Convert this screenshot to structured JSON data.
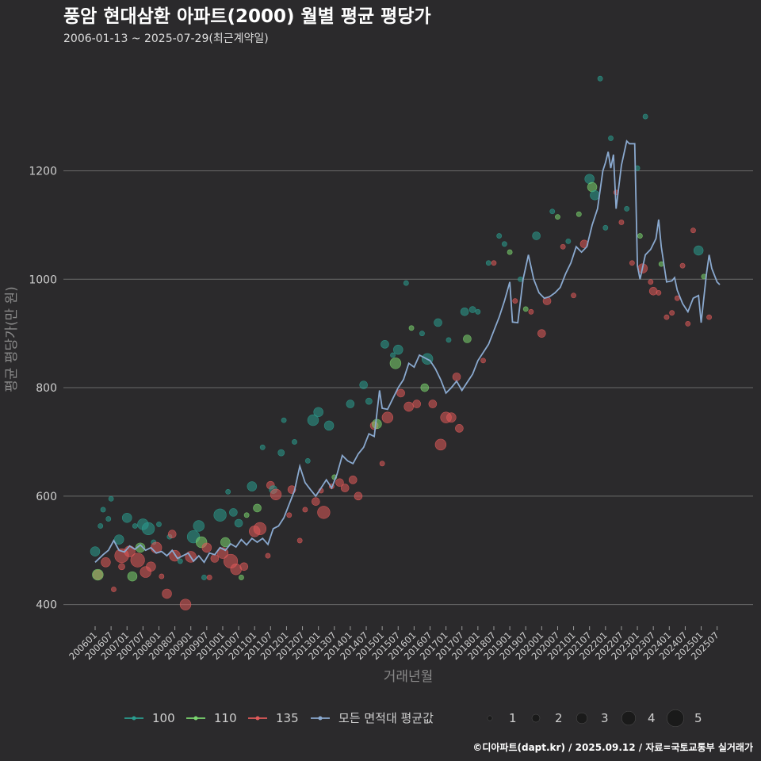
{
  "header": {
    "title": "풍암 현대삼환 아파트(2000) 월별 평균 평당가",
    "subtitle": "2006-01-13 ~ 2025-07-29(최근계약일)"
  },
  "footer": {
    "credit": "©디아파트(dapt.kr) / 2025.09.12 / 자료=국토교통부 실거래가"
  },
  "colors": {
    "background": "#2b2a2c",
    "grid": "#6a6a6a",
    "area_100": "#2a9d8f",
    "area_110": "#7bd66f",
    "area_135": "#e05a5a",
    "average_line": "#8aa9cf"
  },
  "chart_data": {
    "type": "scatter",
    "xlabel": "거래년월",
    "ylabel": "평균 평당가(만 원)",
    "ylim": [
      360,
      1420
    ],
    "yticks": [
      400,
      600,
      800,
      1000,
      1200
    ],
    "x_range": [
      "2006-01",
      "2025-08"
    ],
    "xtick_labels": [
      "200601",
      "200607",
      "200701",
      "200707",
      "200801",
      "200807",
      "200901",
      "200907",
      "201001",
      "201007",
      "201101",
      "201107",
      "201201",
      "201207",
      "201301",
      "201307",
      "201401",
      "201407",
      "201501",
      "201507",
      "201601",
      "201607",
      "201701",
      "201707",
      "201801",
      "201807",
      "201901",
      "201907",
      "202001",
      "202007",
      "202101",
      "202107",
      "202201",
      "202207",
      "202301",
      "202307",
      "202401",
      "202407",
      "202501",
      "202507"
    ],
    "grid": "horizontal",
    "legend_placement": "bottom",
    "color_legend": [
      {
        "name": "100",
        "key": "area_100"
      },
      {
        "name": "110",
        "key": "area_110"
      },
      {
        "name": "135",
        "key": "area_135"
      },
      {
        "name": "모든 면적대 평균값",
        "key": "average_line"
      }
    ],
    "size_legend": [
      1,
      2,
      3,
      4,
      5
    ],
    "average_line": [
      [
        "2006-01",
        478
      ],
      [
        "2006-04",
        492
      ],
      [
        "2006-06",
        500
      ],
      [
        "2006-08",
        518
      ],
      [
        "2006-10",
        500
      ],
      [
        "2006-12",
        497
      ],
      [
        "2007-02",
        508
      ],
      [
        "2007-04",
        502
      ],
      [
        "2007-06",
        510
      ],
      [
        "2007-08",
        500
      ],
      [
        "2007-10",
        505
      ],
      [
        "2007-12",
        495
      ],
      [
        "2008-02",
        498
      ],
      [
        "2008-04",
        490
      ],
      [
        "2008-06",
        500
      ],
      [
        "2008-08",
        485
      ],
      [
        "2008-10",
        490
      ],
      [
        "2008-12",
        495
      ],
      [
        "2009-02",
        480
      ],
      [
        "2009-04",
        490
      ],
      [
        "2009-06",
        478
      ],
      [
        "2009-08",
        495
      ],
      [
        "2009-10",
        492
      ],
      [
        "2009-12",
        505
      ],
      [
        "2010-02",
        500
      ],
      [
        "2010-04",
        512
      ],
      [
        "2010-06",
        506
      ],
      [
        "2010-08",
        520
      ],
      [
        "2010-10",
        510
      ],
      [
        "2010-12",
        522
      ],
      [
        "2011-02",
        515
      ],
      [
        "2011-04",
        522
      ],
      [
        "2011-06",
        511
      ],
      [
        "2011-08",
        540
      ],
      [
        "2011-10",
        545
      ],
      [
        "2011-12",
        560
      ],
      [
        "2012-02",
        585
      ],
      [
        "2012-04",
        610
      ],
      [
        "2012-06",
        655
      ],
      [
        "2012-08",
        625
      ],
      [
        "2012-10",
        612
      ],
      [
        "2012-12",
        600
      ],
      [
        "2013-02",
        615
      ],
      [
        "2013-04",
        630
      ],
      [
        "2013-06",
        615
      ],
      [
        "2013-08",
        640
      ],
      [
        "2013-10",
        675
      ],
      [
        "2013-12",
        665
      ],
      [
        "2014-02",
        660
      ],
      [
        "2014-04",
        678
      ],
      [
        "2014-06",
        690
      ],
      [
        "2014-08",
        715
      ],
      [
        "2014-10",
        710
      ],
      [
        "2014-12",
        795
      ],
      [
        "2015-01",
        762
      ],
      [
        "2015-03",
        760
      ],
      [
        "2015-05",
        780
      ],
      [
        "2015-07",
        800
      ],
      [
        "2015-09",
        815
      ],
      [
        "2015-11",
        845
      ],
      [
        "2016-01",
        838
      ],
      [
        "2016-03",
        860
      ],
      [
        "2016-05",
        855
      ],
      [
        "2016-07",
        850
      ],
      [
        "2016-09",
        835
      ],
      [
        "2016-11",
        815
      ],
      [
        "2017-01",
        790
      ],
      [
        "2017-03",
        800
      ],
      [
        "2017-05",
        812
      ],
      [
        "2017-07",
        795
      ],
      [
        "2017-09",
        810
      ],
      [
        "2017-11",
        825
      ],
      [
        "2018-01",
        850
      ],
      [
        "2018-03",
        865
      ],
      [
        "2018-05",
        880
      ],
      [
        "2018-07",
        905
      ],
      [
        "2018-09",
        930
      ],
      [
        "2018-11",
        960
      ],
      [
        "2019-01",
        995
      ],
      [
        "2019-02",
        921
      ],
      [
        "2019-04",
        920
      ],
      [
        "2019-06",
        1000
      ],
      [
        "2019-08",
        1045
      ],
      [
        "2019-10",
        1000
      ],
      [
        "2019-12",
        975
      ],
      [
        "2020-02",
        965
      ],
      [
        "2020-04",
        968
      ],
      [
        "2020-06",
        975
      ],
      [
        "2020-08",
        985
      ],
      [
        "2020-10",
        1010
      ],
      [
        "2020-12",
        1030
      ],
      [
        "2021-02",
        1060
      ],
      [
        "2021-04",
        1050
      ],
      [
        "2021-06",
        1060
      ],
      [
        "2021-08",
        1100
      ],
      [
        "2021-10",
        1130
      ],
      [
        "2021-12",
        1200
      ],
      [
        "2022-01",
        1215
      ],
      [
        "2022-02",
        1235
      ],
      [
        "2022-03",
        1205
      ],
      [
        "2022-04",
        1230
      ],
      [
        "2022-05",
        1130
      ],
      [
        "2022-07",
        1210
      ],
      [
        "2022-09",
        1255
      ],
      [
        "2022-10",
        1250
      ],
      [
        "2022-12",
        1250
      ],
      [
        "2023-01",
        1025
      ],
      [
        "2023-02",
        1000
      ],
      [
        "2023-04",
        1045
      ],
      [
        "2023-06",
        1055
      ],
      [
        "2023-08",
        1075
      ],
      [
        "2023-09",
        1110
      ],
      [
        "2023-10",
        1060
      ],
      [
        "2023-12",
        995
      ],
      [
        "2024-02",
        997
      ],
      [
        "2024-03",
        1003
      ],
      [
        "2024-04",
        980
      ],
      [
        "2024-06",
        955
      ],
      [
        "2024-08",
        940
      ],
      [
        "2024-10",
        965
      ],
      [
        "2024-12",
        970
      ],
      [
        "2025-01",
        920
      ],
      [
        "2025-03",
        1010
      ],
      [
        "2025-04",
        1045
      ],
      [
        "2025-05",
        1020
      ],
      [
        "2025-07",
        995
      ],
      [
        "2025-08",
        990
      ]
    ],
    "points": [
      [
        "2006-01",
        "100",
        498,
        2.5
      ],
      [
        "2006-02",
        "135",
        455,
        2.5
      ],
      [
        "2006-02",
        "110",
        455,
        3
      ],
      [
        "2006-03",
        "100",
        545,
        1
      ],
      [
        "2006-04",
        "100",
        575,
        1
      ],
      [
        "2006-05",
        "135",
        478,
        2.5
      ],
      [
        "2006-06",
        "100",
        558,
        1
      ],
      [
        "2006-07",
        "100",
        595,
        1
      ],
      [
        "2006-08",
        "135",
        428,
        1
      ],
      [
        "2006-10",
        "100",
        520,
        2.5
      ],
      [
        "2006-11",
        "135",
        470,
        1.5
      ],
      [
        "2006-11",
        "135",
        490,
        4
      ],
      [
        "2007-01",
        "100",
        560,
        2.5
      ],
      [
        "2007-02",
        "135",
        498,
        3
      ],
      [
        "2007-03",
        "110",
        452,
        2.5
      ],
      [
        "2007-04",
        "100",
        545,
        1
      ],
      [
        "2007-05",
        "135",
        482,
        4
      ],
      [
        "2007-06",
        "110",
        505,
        2.5
      ],
      [
        "2007-07",
        "100",
        548,
        3
      ],
      [
        "2007-08",
        "135",
        460,
        3
      ],
      [
        "2007-09",
        "100",
        540,
        3.5
      ],
      [
        "2007-10",
        "135",
        470,
        2.5
      ],
      [
        "2007-11",
        "100",
        515,
        1
      ],
      [
        "2007-12",
        "135",
        505,
        3
      ],
      [
        "2008-01",
        "100",
        548,
        1
      ],
      [
        "2008-02",
        "135",
        452,
        1
      ],
      [
        "2008-04",
        "135",
        420,
        2.5
      ],
      [
        "2008-05",
        "100",
        525,
        1
      ],
      [
        "2008-06",
        "135",
        530,
        2
      ],
      [
        "2008-07",
        "135",
        490,
        3
      ],
      [
        "2008-09",
        "100",
        480,
        1
      ],
      [
        "2008-11",
        "135",
        400,
        3
      ],
      [
        "2009-01",
        "135",
        488,
        3
      ],
      [
        "2009-02",
        "100",
        525,
        3.5
      ],
      [
        "2009-04",
        "100",
        545,
        3
      ],
      [
        "2009-05",
        "110",
        515,
        3
      ],
      [
        "2009-06",
        "100",
        450,
        1
      ],
      [
        "2009-07",
        "135",
        505,
        2.5
      ],
      [
        "2009-08",
        "135",
        450,
        1
      ],
      [
        "2009-10",
        "135",
        485,
        2
      ],
      [
        "2009-12",
        "100",
        565,
        3.5
      ],
      [
        "2010-01",
        "135",
        495,
        3
      ],
      [
        "2010-02",
        "110",
        515,
        2.5
      ],
      [
        "2010-03",
        "100",
        608,
        1
      ],
      [
        "2010-04",
        "135",
        480,
        4
      ],
      [
        "2010-05",
        "100",
        570,
        2
      ],
      [
        "2010-06",
        "135",
        465,
        3
      ],
      [
        "2010-07",
        "100",
        550,
        2
      ],
      [
        "2010-08",
        "110",
        450,
        1
      ],
      [
        "2010-09",
        "135",
        470,
        2
      ],
      [
        "2010-10",
        "110",
        565,
        1
      ],
      [
        "2010-12",
        "100",
        618,
        2.5
      ],
      [
        "2011-01",
        "135",
        535,
        3
      ],
      [
        "2011-02",
        "110",
        578,
        2
      ],
      [
        "2011-03",
        "135",
        540,
        3.5
      ],
      [
        "2011-04",
        "100",
        690,
        1
      ],
      [
        "2011-06",
        "135",
        490,
        1
      ],
      [
        "2011-07",
        "135",
        620,
        2
      ],
      [
        "2011-08",
        "100",
        612,
        2
      ],
      [
        "2011-09",
        "135",
        603,
        3
      ],
      [
        "2011-11",
        "100",
        680,
        1.5
      ],
      [
        "2011-12",
        "100",
        740,
        1
      ],
      [
        "2012-02",
        "135",
        565,
        1
      ],
      [
        "2012-03",
        "135",
        612,
        2
      ],
      [
        "2012-04",
        "100",
        700,
        1
      ],
      [
        "2012-06",
        "135",
        518,
        1
      ],
      [
        "2012-08",
        "135",
        575,
        1
      ],
      [
        "2012-09",
        "100",
        665,
        1
      ],
      [
        "2012-11",
        "100",
        740,
        3
      ],
      [
        "2012-12",
        "135",
        590,
        2
      ],
      [
        "2013-01",
        "100",
        755,
        2.5
      ],
      [
        "2013-02",
        "135",
        610,
        1
      ],
      [
        "2013-03",
        "135",
        570,
        3.5
      ],
      [
        "2013-05",
        "100",
        730,
        2.5
      ],
      [
        "2013-06",
        "135",
        618,
        1
      ],
      [
        "2013-07",
        "110",
        635,
        1
      ],
      [
        "2013-09",
        "135",
        625,
        2
      ],
      [
        "2013-11",
        "135",
        615,
        2
      ],
      [
        "2014-01",
        "100",
        770,
        2
      ],
      [
        "2014-02",
        "135",
        630,
        2
      ],
      [
        "2014-04",
        "135",
        600,
        2
      ],
      [
        "2014-06",
        "100",
        805,
        2
      ],
      [
        "2014-08",
        "100",
        775,
        1.5
      ],
      [
        "2014-10",
        "135",
        730,
        2
      ],
      [
        "2014-11",
        "110",
        733,
        2.5
      ],
      [
        "2015-01",
        "135",
        660,
        1
      ],
      [
        "2015-02",
        "100",
        880,
        2
      ],
      [
        "2015-03",
        "135",
        745,
        3
      ],
      [
        "2015-05",
        "100",
        860,
        1
      ],
      [
        "2015-06",
        "110",
        845,
        3
      ],
      [
        "2015-07",
        "100",
        870,
        2.5
      ],
      [
        "2015-08",
        "135",
        790,
        2
      ],
      [
        "2015-10",
        "100",
        993,
        1
      ],
      [
        "2015-11",
        "135",
        765,
        2.5
      ],
      [
        "2015-12",
        "110",
        910,
        1
      ],
      [
        "2016-02",
        "135",
        770,
        2
      ],
      [
        "2016-04",
        "100",
        900,
        1
      ],
      [
        "2016-05",
        "110",
        800,
        2
      ],
      [
        "2016-06",
        "100",
        853,
        3
      ],
      [
        "2016-08",
        "135",
        770,
        2
      ],
      [
        "2016-10",
        "100",
        920,
        2
      ],
      [
        "2016-11",
        "135",
        695,
        3
      ],
      [
        "2017-01",
        "135",
        745,
        3
      ],
      [
        "2017-02",
        "100",
        888,
        1
      ],
      [
        "2017-03",
        "135",
        745,
        2.5
      ],
      [
        "2017-05",
        "135",
        820,
        2
      ],
      [
        "2017-06",
        "135",
        725,
        2
      ],
      [
        "2017-08",
        "100",
        940,
        2
      ],
      [
        "2017-09",
        "110",
        890,
        2
      ],
      [
        "2017-11",
        "100",
        944,
        1.5
      ],
      [
        "2018-01",
        "100",
        940,
        1
      ],
      [
        "2018-03",
        "135",
        850,
        1
      ],
      [
        "2018-05",
        "100",
        1030,
        1
      ],
      [
        "2018-07",
        "135",
        1030,
        1
      ],
      [
        "2018-09",
        "100",
        1080,
        1
      ],
      [
        "2018-11",
        "100",
        1065,
        1
      ],
      [
        "2019-01",
        "110",
        1050,
        1
      ],
      [
        "2019-03",
        "135",
        960,
        1
      ],
      [
        "2019-05",
        "100",
        1000,
        1
      ],
      [
        "2019-07",
        "110",
        945,
        1
      ],
      [
        "2019-09",
        "135",
        940,
        1
      ],
      [
        "2019-11",
        "100",
        1080,
        2
      ],
      [
        "2020-01",
        "135",
        900,
        2
      ],
      [
        "2020-03",
        "135",
        960,
        2
      ],
      [
        "2020-05",
        "100",
        1125,
        1
      ],
      [
        "2020-07",
        "110",
        1115,
        1
      ],
      [
        "2020-09",
        "135",
        1060,
        1
      ],
      [
        "2020-11",
        "100",
        1070,
        1
      ],
      [
        "2021-01",
        "135",
        970,
        1
      ],
      [
        "2021-03",
        "110",
        1120,
        1
      ],
      [
        "2021-05",
        "135",
        1065,
        2
      ],
      [
        "2021-07",
        "100",
        1185,
        2.5
      ],
      [
        "2021-08",
        "110",
        1170,
        2.5
      ],
      [
        "2021-09",
        "100",
        1155,
        2.5
      ],
      [
        "2021-11",
        "100",
        1370,
        1
      ],
      [
        "2022-01",
        "100",
        1095,
        1
      ],
      [
        "2022-03",
        "100",
        1260,
        1
      ],
      [
        "2022-05",
        "135",
        1160,
        1
      ],
      [
        "2022-07",
        "135",
        1105,
        1
      ],
      [
        "2022-09",
        "100",
        1130,
        1
      ],
      [
        "2022-11",
        "135",
        1030,
        1
      ],
      [
        "2023-01",
        "100",
        1205,
        1
      ],
      [
        "2023-02",
        "110",
        1080,
        1
      ],
      [
        "2023-03",
        "135",
        1020,
        2.5
      ],
      [
        "2023-04",
        "100",
        1300,
        1
      ],
      [
        "2023-06",
        "135",
        995,
        1
      ],
      [
        "2023-07",
        "135",
        978,
        2
      ],
      [
        "2023-09",
        "135",
        975,
        1
      ],
      [
        "2023-10",
        "110",
        1028,
        1
      ],
      [
        "2023-12",
        "135",
        930,
        1
      ],
      [
        "2024-02",
        "135",
        938,
        1
      ],
      [
        "2024-04",
        "135",
        965,
        1
      ],
      [
        "2024-06",
        "135",
        1025,
        1
      ],
      [
        "2024-08",
        "135",
        918,
        1
      ],
      [
        "2024-10",
        "135",
        1090,
        1
      ],
      [
        "2024-12",
        "100",
        1053,
        2.5
      ],
      [
        "2025-02",
        "110",
        1005,
        1
      ],
      [
        "2025-04",
        "135",
        930,
        1
      ]
    ]
  }
}
